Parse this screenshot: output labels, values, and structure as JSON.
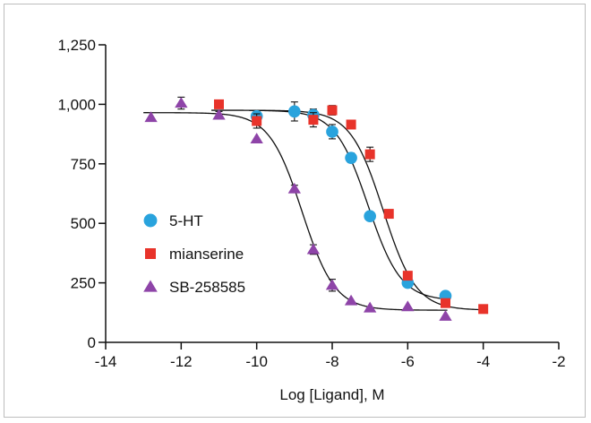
{
  "chart_data": {
    "type": "scatter",
    "title": "",
    "xlabel": "Log [Ligand], M",
    "ylabel": "",
    "xlim": [
      -14,
      -2
    ],
    "ylim": [
      0,
      1250
    ],
    "x_ticks": [
      -14,
      -12,
      -10,
      -8,
      -6,
      -4,
      -2
    ],
    "x_tick_labels": [
      "-14",
      "-12",
      "-10",
      "-8",
      "-6",
      "-4",
      "-2"
    ],
    "y_ticks": [
      0,
      250,
      500,
      750,
      1000,
      1250
    ],
    "y_tick_labels": [
      "0",
      "250",
      "500",
      "750",
      "1,000",
      "1,250"
    ],
    "grid": false,
    "legend_position": "left",
    "series": [
      {
        "name": "5-HT",
        "marker": "circle",
        "color": "#29a3dd",
        "points": [
          {
            "x": -10,
            "y": 950,
            "err": 20
          },
          {
            "x": -9,
            "y": 970,
            "err": 40
          },
          {
            "x": -8.5,
            "y": 955,
            "err": 25
          },
          {
            "x": -8,
            "y": 885,
            "err": 30
          },
          {
            "x": -7.5,
            "y": 775,
            "err": 20
          },
          {
            "x": -7,
            "y": 530,
            "err": 0
          },
          {
            "x": -6,
            "y": 250,
            "err": 0
          },
          {
            "x": -5,
            "y": 195,
            "err": 0
          }
        ],
        "curve": {
          "bottom": 175,
          "top": 975,
          "logEC50": -7.05,
          "hill": 1.0
        }
      },
      {
        "name": "mianserine",
        "marker": "square",
        "color": "#e8332a",
        "points": [
          {
            "x": -11,
            "y": 1000,
            "err": 10
          },
          {
            "x": -10,
            "y": 930,
            "err": 30
          },
          {
            "x": -8.5,
            "y": 935,
            "err": 30
          },
          {
            "x": -8,
            "y": 975,
            "err": 20
          },
          {
            "x": -7.5,
            "y": 915,
            "err": 0
          },
          {
            "x": -7,
            "y": 790,
            "err": 30
          },
          {
            "x": -6.5,
            "y": 540,
            "err": 0
          },
          {
            "x": -6,
            "y": 280,
            "err": 0
          },
          {
            "x": -5,
            "y": 165,
            "err": 0
          },
          {
            "x": -4,
            "y": 140,
            "err": 0
          }
        ],
        "curve": {
          "bottom": 135,
          "top": 975,
          "logEC50": -6.65,
          "hill": 1.0
        }
      },
      {
        "name": "SB-258585",
        "marker": "triangle",
        "color": "#8e44a8",
        "points": [
          {
            "x": -12.8,
            "y": 945,
            "err": 0
          },
          {
            "x": -12,
            "y": 1005,
            "err": 25
          },
          {
            "x": -11,
            "y": 955,
            "err": 15
          },
          {
            "x": -10,
            "y": 855,
            "err": 0
          },
          {
            "x": -9,
            "y": 645,
            "err": 15
          },
          {
            "x": -8.5,
            "y": 390,
            "err": 20
          },
          {
            "x": -8,
            "y": 240,
            "err": 25
          },
          {
            "x": -7.5,
            "y": 175,
            "err": 0
          },
          {
            "x": -7,
            "y": 145,
            "err": 0
          },
          {
            "x": -6,
            "y": 150,
            "err": 0
          },
          {
            "x": -5,
            "y": 110,
            "err": 0
          }
        ],
        "curve": {
          "bottom": 135,
          "top": 965,
          "logEC50": -8.8,
          "hill": 1.0
        }
      }
    ]
  }
}
